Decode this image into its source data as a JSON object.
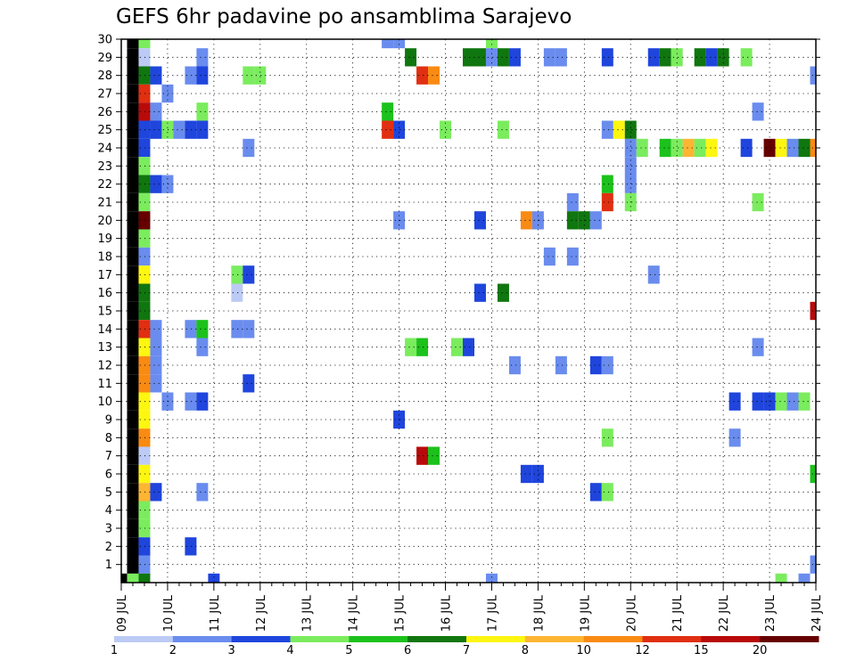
{
  "chart_data": {
    "type": "heatmap",
    "title": "GEFS 6hr padavine po ansamblima Sarajevo",
    "x_tick_labels": [
      "09 JUL",
      "10 JUL",
      "11 JUL",
      "12 JUL",
      "13 JUL",
      "14 JUL",
      "15 JUL",
      "16 JUL",
      "17 JUL",
      "18 JUL",
      "19 JUL",
      "20 JUL",
      "21 JUL",
      "22 JUL",
      "23 JUL",
      "24 JUL"
    ],
    "y_tick_labels": [
      "1",
      "2",
      "3",
      "4",
      "5",
      "6",
      "7",
      "8",
      "9",
      "10",
      "11",
      "12",
      "13",
      "14",
      "15",
      "16",
      "17",
      "18",
      "19",
      "20",
      "21",
      "22",
      "23",
      "24",
      "25",
      "26",
      "27",
      "28",
      "29",
      "30"
    ],
    "x_steps_per_day": 4,
    "x_range_steps": [
      0,
      60
    ],
    "y_range": [
      0,
      30
    ],
    "grid": true,
    "colorbar": {
      "labels": [
        "1",
        "2",
        "3",
        "4",
        "5",
        "6",
        "7",
        "8",
        "10",
        "12",
        "15",
        "20"
      ],
      "colors": [
        "#bccbf5",
        "#6a8cee",
        "#1f45dd",
        "#7bec5e",
        "#1cc11c",
        "#10760f",
        "#fdf610",
        "#fdb533",
        "#f98a12",
        "#e02f11",
        "#b80a0a",
        "#660000"
      ]
    },
    "cells": [
      [
        0,
        0,
        12
      ],
      [
        1,
        0,
        3
      ],
      [
        1,
        1,
        12
      ],
      [
        1,
        2,
        12
      ],
      [
        1,
        3,
        12
      ],
      [
        1,
        4,
        12
      ],
      [
        1,
        5,
        12
      ],
      [
        1,
        6,
        12
      ],
      [
        1,
        7,
        12
      ],
      [
        1,
        8,
        12
      ],
      [
        1,
        9,
        12
      ],
      [
        1,
        10,
        12
      ],
      [
        1,
        11,
        12
      ],
      [
        1,
        12,
        12
      ],
      [
        1,
        13,
        12
      ],
      [
        1,
        14,
        12
      ],
      [
        1,
        15,
        12
      ],
      [
        1,
        16,
        12
      ],
      [
        1,
        17,
        12
      ],
      [
        1,
        18,
        12
      ],
      [
        1,
        19,
        12
      ],
      [
        1,
        20,
        12
      ],
      [
        1,
        21,
        12
      ],
      [
        1,
        22,
        12
      ],
      [
        1,
        23,
        12
      ],
      [
        1,
        24,
        12
      ],
      [
        1,
        25,
        12
      ],
      [
        1,
        26,
        12
      ],
      [
        1,
        27,
        12
      ],
      [
        1,
        28,
        12
      ],
      [
        1,
        29,
        12
      ],
      [
        1,
        30,
        12
      ],
      [
        2,
        30,
        3
      ],
      [
        2,
        29,
        0
      ],
      [
        2,
        28,
        5
      ],
      [
        2,
        27,
        9
      ],
      [
        2,
        26,
        10
      ],
      [
        2,
        25,
        2
      ],
      [
        2,
        24,
        2
      ],
      [
        2,
        23,
        3
      ],
      [
        2,
        22,
        5
      ],
      [
        2,
        21,
        3
      ],
      [
        2,
        20,
        11
      ],
      [
        2,
        19,
        3
      ],
      [
        2,
        18,
        1
      ],
      [
        2,
        17,
        6
      ],
      [
        2,
        16,
        5
      ],
      [
        2,
        15,
        5
      ],
      [
        2,
        14,
        9
      ],
      [
        2,
        13,
        6
      ],
      [
        2,
        12,
        8
      ],
      [
        2,
        11,
        8
      ],
      [
        2,
        10,
        6
      ],
      [
        2,
        9,
        6
      ],
      [
        2,
        8,
        8
      ],
      [
        2,
        7,
        0
      ],
      [
        2,
        6,
        6
      ],
      [
        2,
        5,
        7
      ],
      [
        2,
        4,
        3
      ],
      [
        2,
        3,
        3
      ],
      [
        2,
        2,
        2
      ],
      [
        2,
        1,
        1
      ],
      [
        2,
        0,
        5
      ],
      [
        3,
        28,
        2
      ],
      [
        3,
        26,
        1
      ],
      [
        3,
        25,
        2
      ],
      [
        3,
        22,
        2
      ],
      [
        3,
        14,
        1
      ],
      [
        3,
        13,
        1
      ],
      [
        3,
        12,
        1
      ],
      [
        3,
        11,
        1
      ],
      [
        3,
        5,
        2
      ],
      [
        4,
        27,
        1
      ],
      [
        4,
        25,
        3
      ],
      [
        4,
        22,
        1
      ],
      [
        4,
        10,
        1
      ],
      [
        5,
        25,
        1
      ],
      [
        6,
        28,
        1
      ],
      [
        6,
        25,
        2
      ],
      [
        6,
        14,
        1
      ],
      [
        6,
        10,
        1
      ],
      [
        6,
        2,
        2
      ],
      [
        7,
        29,
        1
      ],
      [
        7,
        28,
        2
      ],
      [
        7,
        26,
        3
      ],
      [
        7,
        25,
        2
      ],
      [
        7,
        14,
        4
      ],
      [
        7,
        13,
        1
      ],
      [
        7,
        10,
        2
      ],
      [
        7,
        5,
        1
      ],
      [
        8,
        0,
        2
      ],
      [
        10,
        17,
        3
      ],
      [
        10,
        14,
        1
      ],
      [
        10,
        16,
        0
      ],
      [
        11,
        28,
        3
      ],
      [
        11,
        24,
        1
      ],
      [
        11,
        17,
        2
      ],
      [
        11,
        14,
        1
      ],
      [
        11,
        11,
        2
      ],
      [
        12,
        28,
        3
      ],
      [
        23,
        30,
        1
      ],
      [
        23,
        26,
        4
      ],
      [
        23,
        25,
        9
      ],
      [
        24,
        30,
        1
      ],
      [
        24,
        25,
        2
      ],
      [
        24,
        20,
        1
      ],
      [
        24,
        9,
        2
      ],
      [
        25,
        29,
        5
      ],
      [
        25,
        13,
        3
      ],
      [
        26,
        28,
        9
      ],
      [
        26,
        13,
        4
      ],
      [
        26,
        7,
        10
      ],
      [
        27,
        28,
        8
      ],
      [
        27,
        7,
        4
      ],
      [
        28,
        25,
        3
      ],
      [
        29,
        13,
        3
      ],
      [
        30,
        29,
        5
      ],
      [
        30,
        13,
        2
      ],
      [
        31,
        29,
        5
      ],
      [
        31,
        20,
        2
      ],
      [
        31,
        16,
        2
      ],
      [
        32,
        30,
        3
      ],
      [
        32,
        29,
        1
      ],
      [
        32,
        0,
        1
      ],
      [
        33,
        29,
        5
      ],
      [
        33,
        25,
        3
      ],
      [
        33,
        16,
        5
      ],
      [
        34,
        29,
        2
      ],
      [
        34,
        12,
        1
      ],
      [
        35,
        20,
        8
      ],
      [
        35,
        6,
        2
      ],
      [
        36,
        20,
        1
      ],
      [
        36,
        6,
        2
      ],
      [
        37,
        29,
        1
      ],
      [
        37,
        18,
        1
      ],
      [
        38,
        29,
        1
      ],
      [
        38,
        12,
        1
      ],
      [
        39,
        21,
        1
      ],
      [
        39,
        20,
        5
      ],
      [
        39,
        18,
        1
      ],
      [
        40,
        20,
        5
      ],
      [
        41,
        20,
        1
      ],
      [
        41,
        12,
        2
      ],
      [
        41,
        5,
        2
      ],
      [
        42,
        29,
        2
      ],
      [
        42,
        25,
        1
      ],
      [
        42,
        22,
        4
      ],
      [
        42,
        21,
        9
      ],
      [
        42,
        12,
        1
      ],
      [
        42,
        8,
        3
      ],
      [
        42,
        5,
        3
      ],
      [
        43,
        25,
        6
      ],
      [
        44,
        25,
        5
      ],
      [
        44,
        24,
        1
      ],
      [
        44,
        23,
        1
      ],
      [
        44,
        22,
        1
      ],
      [
        44,
        21,
        3
      ],
      [
        45,
        24,
        3
      ],
      [
        46,
        29,
        2
      ],
      [
        46,
        17,
        1
      ],
      [
        47,
        29,
        5
      ],
      [
        47,
        24,
        4
      ],
      [
        48,
        29,
        3
      ],
      [
        48,
        24,
        3
      ],
      [
        49,
        24,
        7
      ],
      [
        50,
        29,
        5
      ],
      [
        50,
        24,
        3
      ],
      [
        51,
        29,
        2
      ],
      [
        51,
        24,
        6
      ],
      [
        52,
        29,
        5
      ],
      [
        53,
        10,
        2
      ],
      [
        53,
        8,
        1
      ],
      [
        54,
        29,
        3
      ],
      [
        54,
        24,
        2
      ],
      [
        55,
        10,
        2
      ],
      [
        55,
        21,
        3
      ],
      [
        55,
        26,
        1
      ],
      [
        55,
        13,
        1
      ],
      [
        56,
        24,
        11
      ],
      [
        56,
        10,
        2
      ],
      [
        57,
        24,
        6
      ],
      [
        57,
        10,
        3
      ],
      [
        57,
        0,
        3
      ],
      [
        58,
        24,
        1
      ],
      [
        58,
        10,
        1
      ],
      [
        59,
        24,
        5
      ],
      [
        59,
        10,
        3
      ],
      [
        59,
        0,
        1
      ],
      [
        60,
        24,
        8
      ],
      [
        60,
        28,
        1
      ],
      [
        60,
        15,
        10
      ],
      [
        60,
        6,
        4
      ],
      [
        60,
        1,
        1
      ],
      [
        61,
        23,
        1
      ],
      [
        61,
        10,
        8
      ],
      [
        61,
        6,
        1
      ],
      [
        61,
        2,
        1
      ]
    ]
  }
}
